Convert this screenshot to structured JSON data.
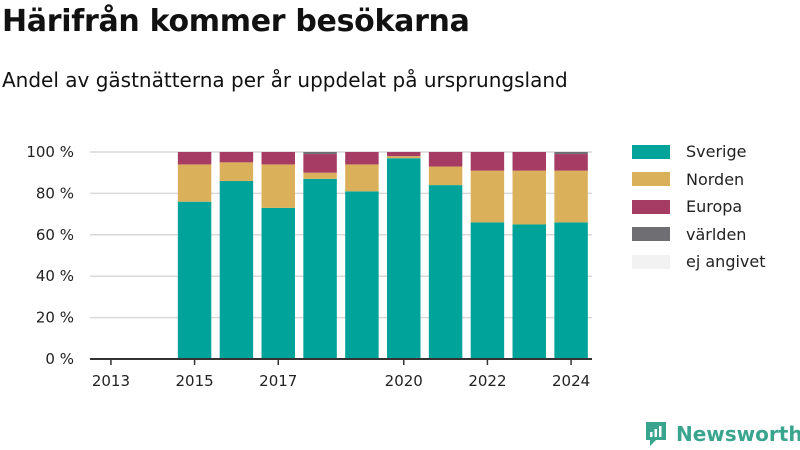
{
  "title": "Härifrån kommer besökarna",
  "subtitle": "Andel av gästnätterna per år uppdelat på ursprungsland",
  "brand": "Newsworthy",
  "colors": {
    "sverige": "#00a39a",
    "norden": "#dbb05b",
    "europa": "#a63c63",
    "varlden": "#6f6f73",
    "ej_angivet": "#f2f2f2",
    "grid": "#d9d9d9",
    "axis": "#333333",
    "brand": "#3aa58e"
  },
  "chart_data": {
    "type": "bar",
    "stacked": true,
    "categories": [
      "2013",
      "2014",
      "2015",
      "2016",
      "2017",
      "2018",
      "2019",
      "2020",
      "2021",
      "2022",
      "2023",
      "2024"
    ],
    "x_tick_labels": [
      "2013",
      "2015",
      "2017",
      "2020",
      "2022",
      "2024"
    ],
    "y_tick_labels": [
      "0 %",
      "20 %",
      "40 %",
      "60 %",
      "80 %",
      "100 %"
    ],
    "ylim": [
      0,
      100
    ],
    "grid": true,
    "legend": "right",
    "series": [
      {
        "name": "Sverige",
        "color_key": "sverige",
        "values": [
          null,
          null,
          76,
          86,
          73,
          87,
          81,
          97,
          84,
          66,
          65,
          66
        ]
      },
      {
        "name": "Norden",
        "color_key": "norden",
        "values": [
          null,
          null,
          18,
          9,
          21,
          3,
          13,
          1,
          9,
          25,
          26,
          25
        ]
      },
      {
        "name": "Europa",
        "color_key": "europa",
        "values": [
          null,
          null,
          6,
          5,
          6,
          9,
          6,
          2,
          7,
          9,
          9,
          8
        ]
      },
      {
        "name": "världen",
        "color_key": "varlden",
        "values": [
          null,
          null,
          0,
          0,
          0,
          1,
          0,
          0,
          0,
          0,
          0,
          1
        ]
      },
      {
        "name": "ej angivet",
        "color_key": "ej_angivet",
        "values": [
          null,
          null,
          0,
          0,
          0,
          0,
          0,
          0,
          0,
          0,
          0,
          0
        ]
      }
    ]
  }
}
